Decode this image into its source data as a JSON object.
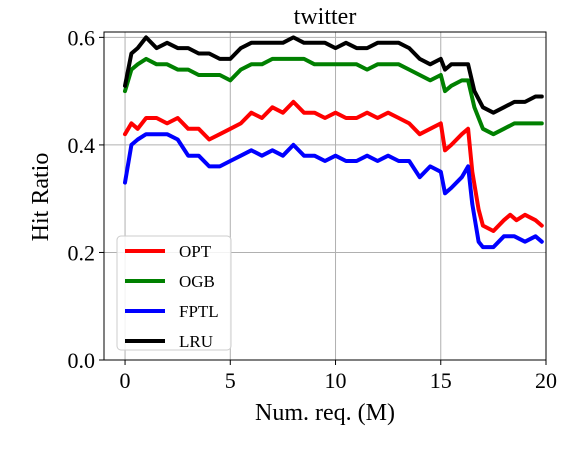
{
  "chart_data": {
    "type": "line",
    "title": "twitter",
    "xlabel": "Num. req. (M)",
    "ylabel": "Hit Ratio",
    "xlim": [
      -1.0,
      20.0
    ],
    "ylim": [
      0.0,
      0.61
    ],
    "xticks": [
      0,
      5,
      10,
      15,
      20
    ],
    "xtick_labels": [
      "0",
      "5",
      "10",
      "15",
      "20"
    ],
    "yticks": [
      0.0,
      0.2,
      0.4,
      0.6
    ],
    "ytick_labels": [
      "0.0",
      "0.2",
      "0.4",
      "0.6"
    ],
    "grid": true,
    "legend_position": "lower-left",
    "series": [
      {
        "name": "OPT",
        "color": "#ff0000",
        "points": [
          [
            0,
            0.42
          ],
          [
            0.3,
            0.44
          ],
          [
            0.6,
            0.43
          ],
          [
            1,
            0.45
          ],
          [
            1.5,
            0.45
          ],
          [
            2,
            0.44
          ],
          [
            2.5,
            0.45
          ],
          [
            3,
            0.43
          ],
          [
            3.5,
            0.43
          ],
          [
            4,
            0.41
          ],
          [
            4.5,
            0.42
          ],
          [
            5,
            0.43
          ],
          [
            5.5,
            0.44
          ],
          [
            6,
            0.46
          ],
          [
            6.5,
            0.45
          ],
          [
            7,
            0.47
          ],
          [
            7.5,
            0.46
          ],
          [
            8,
            0.48
          ],
          [
            8.5,
            0.46
          ],
          [
            9,
            0.46
          ],
          [
            9.5,
            0.45
          ],
          [
            10,
            0.46
          ],
          [
            10.5,
            0.45
          ],
          [
            11,
            0.45
          ],
          [
            11.5,
            0.46
          ],
          [
            12,
            0.45
          ],
          [
            12.5,
            0.46
          ],
          [
            13,
            0.45
          ],
          [
            13.5,
            0.44
          ],
          [
            14,
            0.42
          ],
          [
            14.5,
            0.43
          ],
          [
            15,
            0.44
          ],
          [
            15.2,
            0.39
          ],
          [
            15.5,
            0.4
          ],
          [
            16,
            0.42
          ],
          [
            16.3,
            0.43
          ],
          [
            16.5,
            0.35
          ],
          [
            16.8,
            0.28
          ],
          [
            17,
            0.25
          ],
          [
            17.5,
            0.24
          ],
          [
            18,
            0.26
          ],
          [
            18.3,
            0.27
          ],
          [
            18.6,
            0.26
          ],
          [
            19,
            0.27
          ],
          [
            19.5,
            0.26
          ],
          [
            19.8,
            0.25
          ]
        ]
      },
      {
        "name": "OGB",
        "color": "#008000",
        "points": [
          [
            0,
            0.5
          ],
          [
            0.3,
            0.54
          ],
          [
            0.6,
            0.55
          ],
          [
            1,
            0.56
          ],
          [
            1.5,
            0.55
          ],
          [
            2,
            0.55
          ],
          [
            2.5,
            0.54
          ],
          [
            3,
            0.54
          ],
          [
            3.5,
            0.53
          ],
          [
            4,
            0.53
          ],
          [
            4.5,
            0.53
          ],
          [
            5,
            0.52
          ],
          [
            5.5,
            0.54
          ],
          [
            6,
            0.55
          ],
          [
            6.5,
            0.55
          ],
          [
            7,
            0.56
          ],
          [
            7.5,
            0.56
          ],
          [
            8,
            0.56
          ],
          [
            8.5,
            0.56
          ],
          [
            9,
            0.55
          ],
          [
            9.5,
            0.55
          ],
          [
            10,
            0.55
          ],
          [
            10.5,
            0.55
          ],
          [
            11,
            0.55
          ],
          [
            11.5,
            0.54
          ],
          [
            12,
            0.55
          ],
          [
            12.5,
            0.55
          ],
          [
            13,
            0.55
          ],
          [
            13.5,
            0.54
          ],
          [
            14,
            0.53
          ],
          [
            14.5,
            0.52
          ],
          [
            15,
            0.53
          ],
          [
            15.2,
            0.5
          ],
          [
            15.5,
            0.51
          ],
          [
            16,
            0.52
          ],
          [
            16.3,
            0.52
          ],
          [
            16.6,
            0.47
          ],
          [
            17,
            0.43
          ],
          [
            17.5,
            0.42
          ],
          [
            18,
            0.43
          ],
          [
            18.5,
            0.44
          ],
          [
            19,
            0.44
          ],
          [
            19.5,
            0.44
          ],
          [
            19.8,
            0.44
          ]
        ]
      },
      {
        "name": "FPTL",
        "color": "#0000ff",
        "points": [
          [
            0,
            0.33
          ],
          [
            0.3,
            0.4
          ],
          [
            0.6,
            0.41
          ],
          [
            1,
            0.42
          ],
          [
            1.5,
            0.42
          ],
          [
            2,
            0.42
          ],
          [
            2.5,
            0.41
          ],
          [
            3,
            0.38
          ],
          [
            3.5,
            0.38
          ],
          [
            4,
            0.36
          ],
          [
            4.5,
            0.36
          ],
          [
            5,
            0.37
          ],
          [
            5.5,
            0.38
          ],
          [
            6,
            0.39
          ],
          [
            6.5,
            0.38
          ],
          [
            7,
            0.39
          ],
          [
            7.5,
            0.38
          ],
          [
            8,
            0.4
          ],
          [
            8.5,
            0.38
          ],
          [
            9,
            0.38
          ],
          [
            9.5,
            0.37
          ],
          [
            10,
            0.38
          ],
          [
            10.5,
            0.37
          ],
          [
            11,
            0.37
          ],
          [
            11.5,
            0.38
          ],
          [
            12,
            0.37
          ],
          [
            12.5,
            0.38
          ],
          [
            13,
            0.37
          ],
          [
            13.5,
            0.37
          ],
          [
            14,
            0.34
          ],
          [
            14.5,
            0.36
          ],
          [
            15,
            0.35
          ],
          [
            15.2,
            0.31
          ],
          [
            15.5,
            0.32
          ],
          [
            16,
            0.34
          ],
          [
            16.3,
            0.36
          ],
          [
            16.5,
            0.29
          ],
          [
            16.8,
            0.22
          ],
          [
            17,
            0.21
          ],
          [
            17.5,
            0.21
          ],
          [
            18,
            0.23
          ],
          [
            18.5,
            0.23
          ],
          [
            19,
            0.22
          ],
          [
            19.5,
            0.23
          ],
          [
            19.8,
            0.22
          ]
        ]
      },
      {
        "name": "LRU",
        "color": "#000000",
        "points": [
          [
            0,
            0.51
          ],
          [
            0.3,
            0.57
          ],
          [
            0.6,
            0.58
          ],
          [
            1,
            0.6
          ],
          [
            1.5,
            0.58
          ],
          [
            2,
            0.59
          ],
          [
            2.5,
            0.58
          ],
          [
            3,
            0.58
          ],
          [
            3.5,
            0.57
          ],
          [
            4,
            0.57
          ],
          [
            4.5,
            0.56
          ],
          [
            5,
            0.56
          ],
          [
            5.5,
            0.58
          ],
          [
            6,
            0.59
          ],
          [
            6.5,
            0.59
          ],
          [
            7,
            0.59
          ],
          [
            7.5,
            0.59
          ],
          [
            8,
            0.6
          ],
          [
            8.5,
            0.59
          ],
          [
            9,
            0.59
          ],
          [
            9.5,
            0.59
          ],
          [
            10,
            0.58
          ],
          [
            10.5,
            0.59
          ],
          [
            11,
            0.58
          ],
          [
            11.5,
            0.58
          ],
          [
            12,
            0.59
          ],
          [
            12.5,
            0.59
          ],
          [
            13,
            0.59
          ],
          [
            13.5,
            0.58
          ],
          [
            14,
            0.56
          ],
          [
            14.5,
            0.55
          ],
          [
            15,
            0.56
          ],
          [
            15.2,
            0.54
          ],
          [
            15.5,
            0.55
          ],
          [
            16,
            0.55
          ],
          [
            16.3,
            0.55
          ],
          [
            16.6,
            0.5
          ],
          [
            17,
            0.47
          ],
          [
            17.5,
            0.46
          ],
          [
            18,
            0.47
          ],
          [
            18.5,
            0.48
          ],
          [
            19,
            0.48
          ],
          [
            19.5,
            0.49
          ],
          [
            19.8,
            0.49
          ]
        ]
      }
    ]
  }
}
